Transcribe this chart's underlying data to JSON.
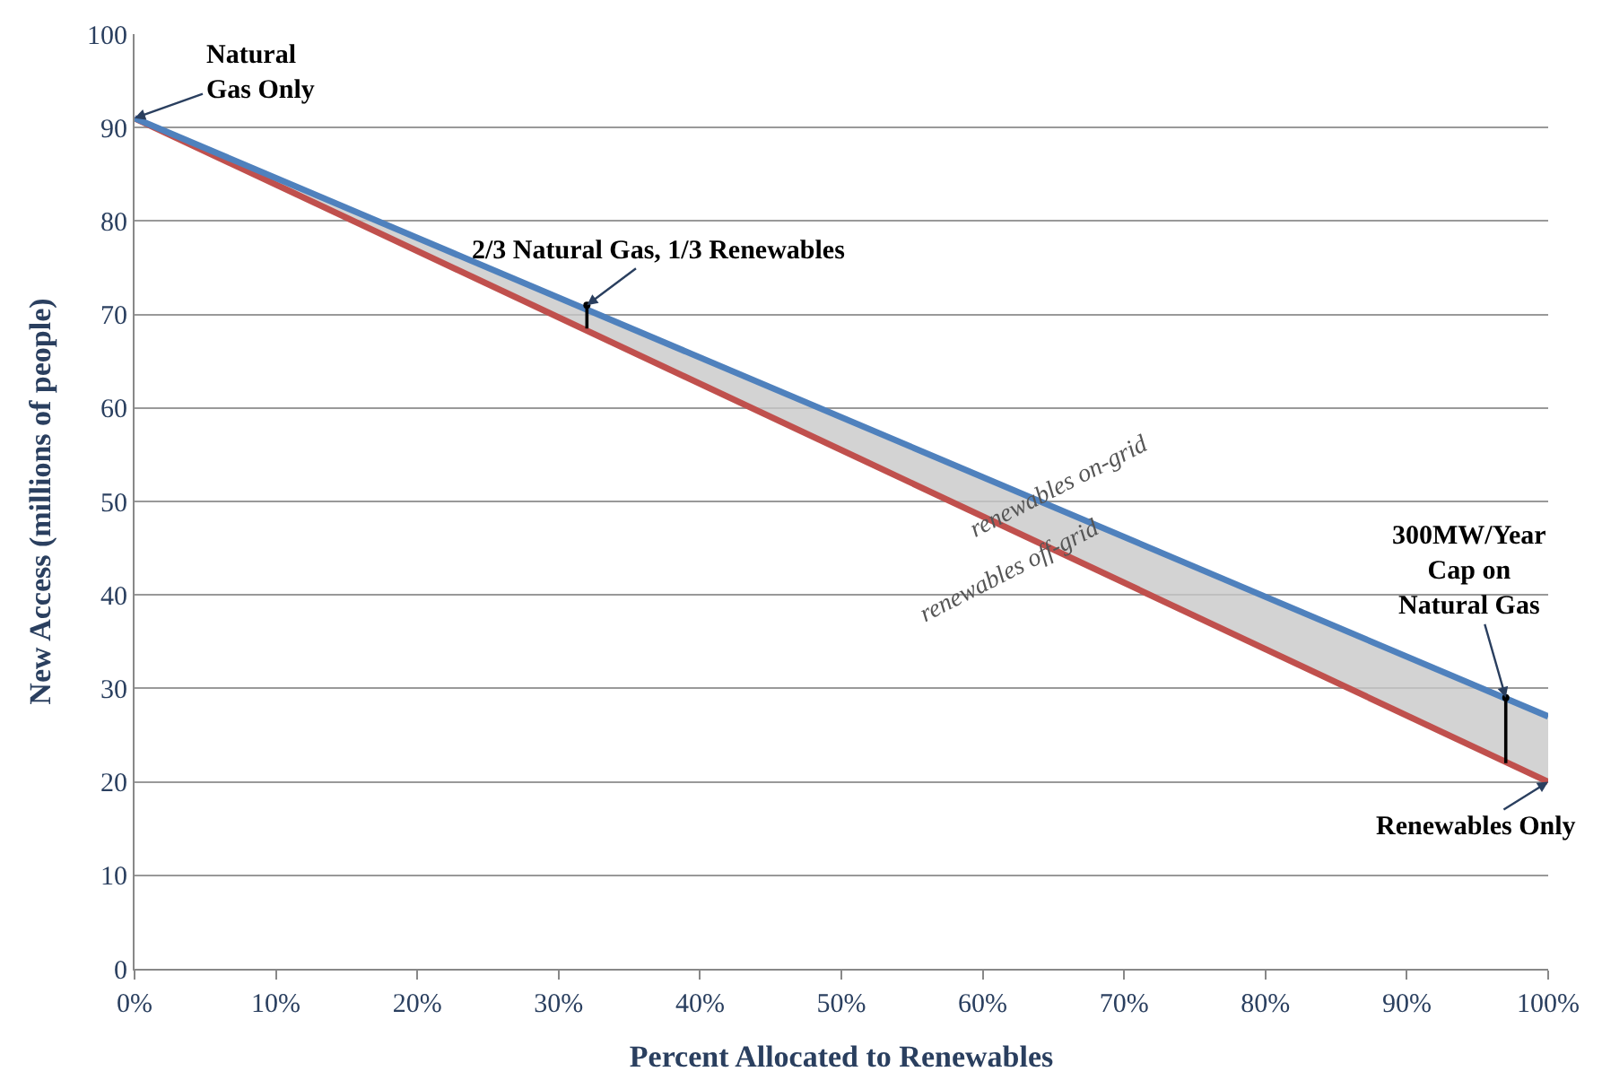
{
  "chart_data": {
    "type": "line",
    "x": [
      0,
      100
    ],
    "series": [
      {
        "name": null,
        "color": "#c0504d",
        "values": [
          91,
          20
        ]
      },
      {
        "name": null,
        "color": "#4f81bd",
        "values": [
          91,
          27
        ],
        "lower": [
          91,
          20
        ],
        "upper": [
          91,
          27
        ]
      },
      {
        "type": "scatter",
        "marker": "circle",
        "color": "#000000",
        "x": [
          32,
          97
        ],
        "values": [
          71,
          29
        ],
        "errors": [
          [
            68.5,
            71
          ],
          [
            22,
            29
          ]
        ]
      }
    ],
    "xlabel": "Percent Allocated to Renewables",
    "ylabel": "New Access (millions of people)",
    "xlim": [
      0,
      100
    ],
    "xticks": [
      {
        "value": 0,
        "label": "0%"
      },
      {
        "value": 10,
        "label": "10%"
      },
      {
        "value": 20,
        "label": "20%"
      },
      {
        "value": 30,
        "label": "30%"
      },
      {
        "value": 40,
        "label": "40%"
      },
      {
        "value": 50,
        "label": "50%"
      },
      {
        "value": 60,
        "label": "60%"
      },
      {
        "value": 70,
        "label": "70%"
      },
      {
        "value": 80,
        "label": "80%"
      },
      {
        "value": 90,
        "label": "90%"
      },
      {
        "value": 100,
        "label": "100%"
      }
    ],
    "ylim": [
      0,
      100
    ],
    "yticks": [
      0,
      10,
      20,
      30,
      40,
      50,
      60,
      70,
      80,
      90,
      100
    ],
    "grid": "y",
    "annotations": [
      {
        "text": "Natural\nGas Only",
        "x": 0,
        "y": 91
      },
      {
        "text": "2/3 Natural Gas, 1/3 Renewables",
        "x": 32,
        "y": 71
      },
      {
        "text": "300MW/Year\nCap on\nNatural Gas",
        "x": 97,
        "y": 29
      },
      {
        "text": "Renewables Only",
        "x": 100,
        "y": 20
      },
      "renewables on-grid",
      "renewables off-grid"
    ]
  }
}
